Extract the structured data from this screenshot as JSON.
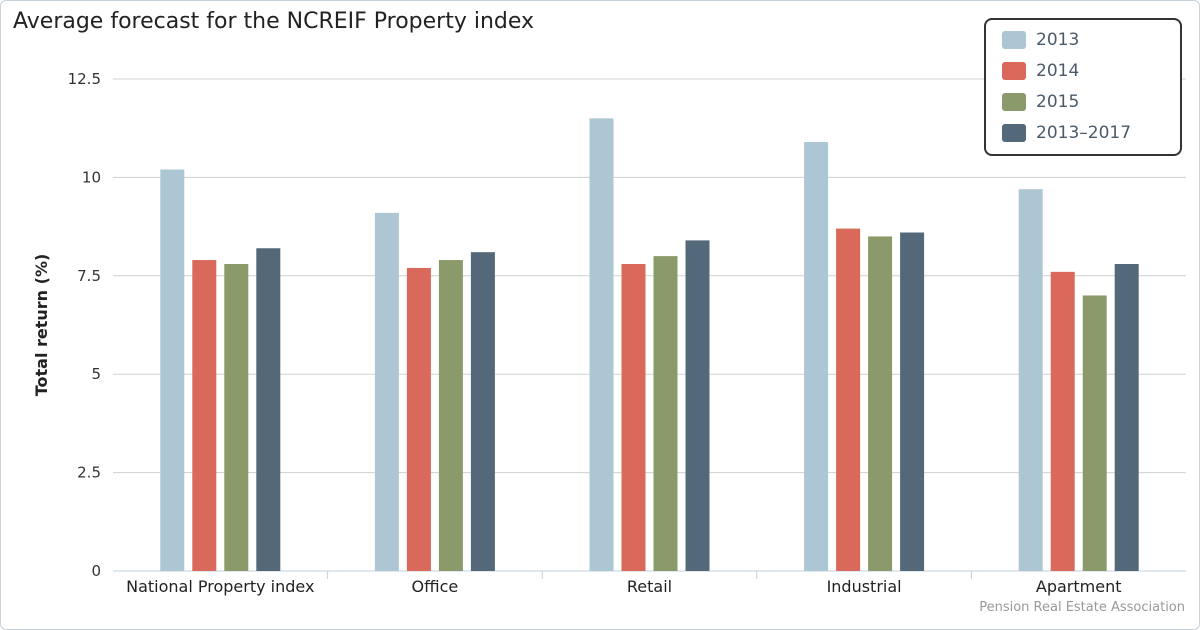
{
  "chart_data": {
    "type": "bar",
    "title": "Average forecast for the NCREIF Property index",
    "xlabel": "",
    "ylabel": "Total return (%)",
    "ylim": [
      0,
      12.5
    ],
    "yticks": [
      "0",
      "2.5",
      "5",
      "7.5",
      "10",
      "12.5"
    ],
    "grid": true,
    "legend_placement": "top-right",
    "categories": [
      "National Property index",
      "Office",
      "Retail",
      "Industrial",
      "Apartment"
    ],
    "series": [
      {
        "name": "2013",
        "color": "#adc6d3",
        "values": [
          10.2,
          9.1,
          11.5,
          10.9,
          9.7
        ]
      },
      {
        "name": "2014",
        "color": "#d9695a",
        "values": [
          7.9,
          7.7,
          7.8,
          8.7,
          7.6
        ]
      },
      {
        "name": "2015",
        "color": "#8a9a6a",
        "values": [
          7.8,
          7.9,
          8.0,
          8.5,
          7.0
        ]
      },
      {
        "name": "2013-2017",
        "color": "#536879",
        "values": [
          8.2,
          8.1,
          8.4,
          8.6,
          7.8
        ]
      }
    ],
    "credit": "Pension Real Estate Association"
  }
}
